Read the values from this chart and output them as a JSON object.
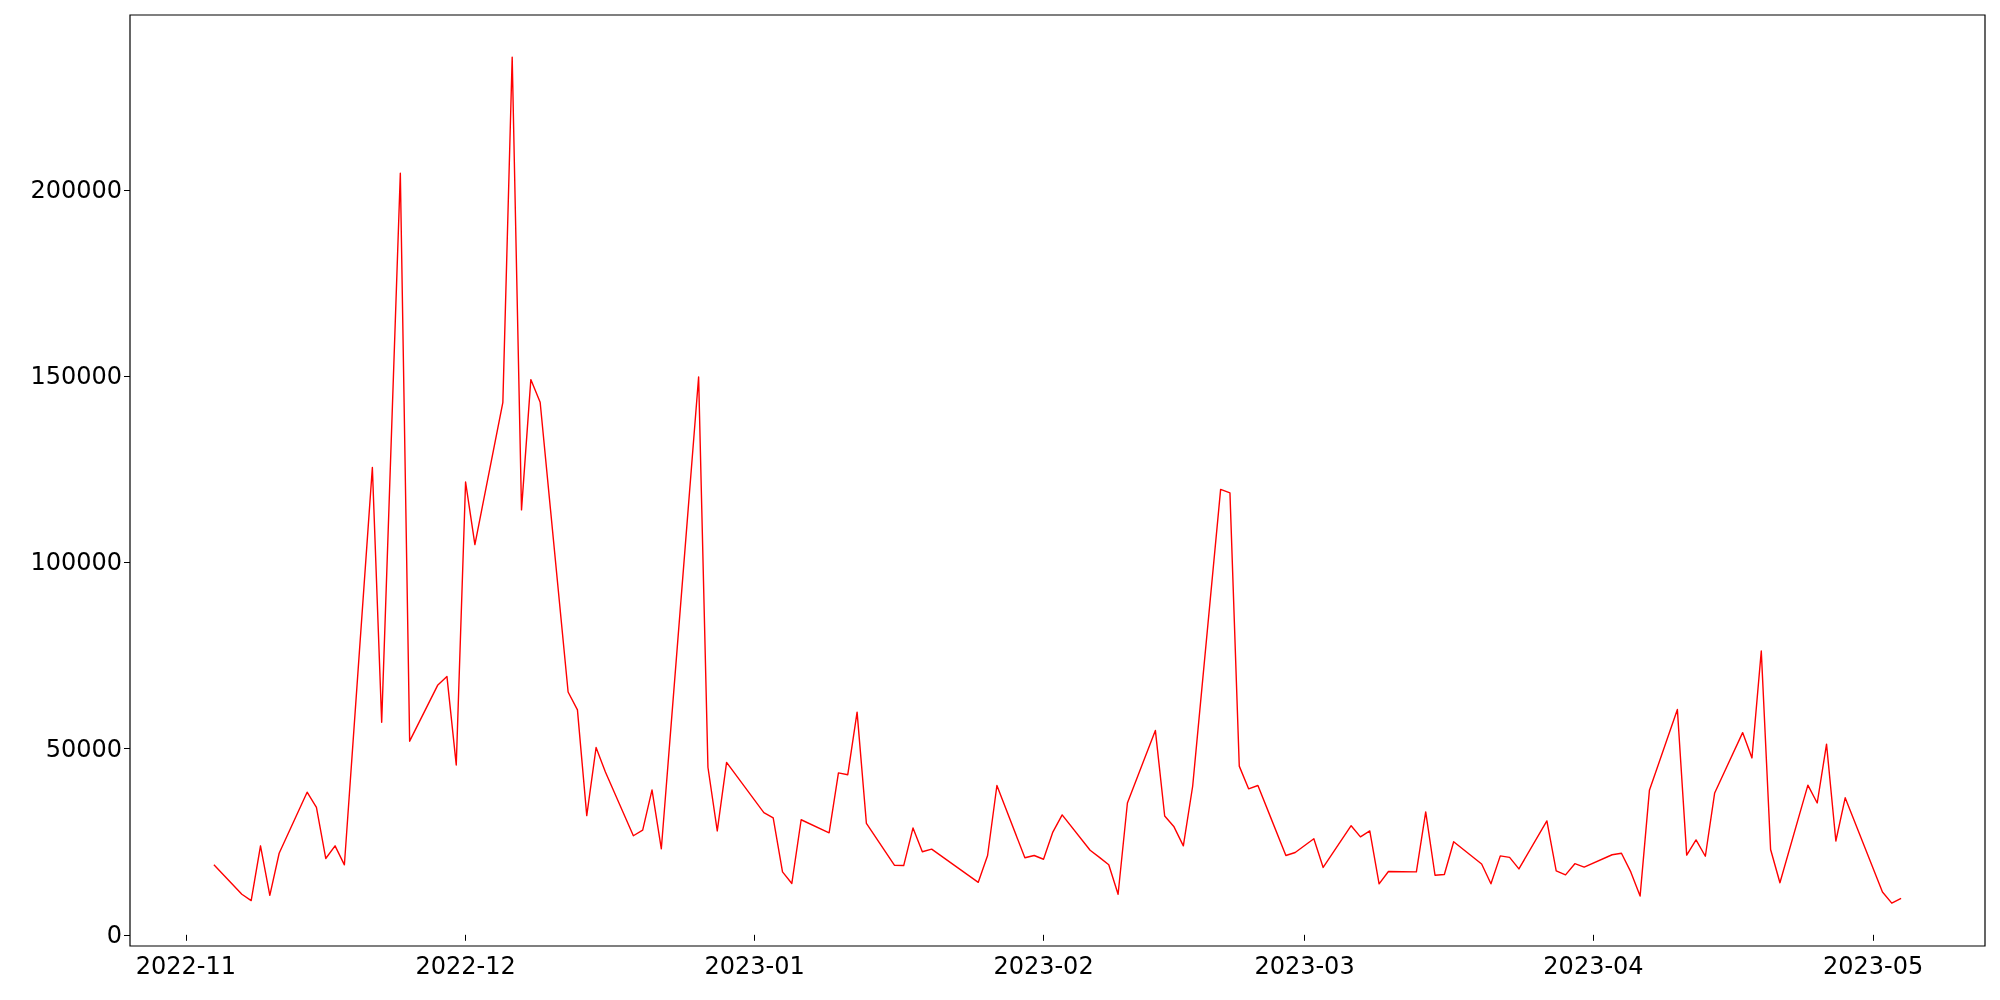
{
  "chart_data": {
    "type": "line",
    "x": [
      "2022-11-04",
      "2022-11-07",
      "2022-11-08",
      "2022-11-09",
      "2022-11-10",
      "2022-11-11",
      "2022-11-14",
      "2022-11-15",
      "2022-11-16",
      "2022-11-17",
      "2022-11-18",
      "2022-11-21",
      "2022-11-22",
      "2022-11-24",
      "2022-11-25",
      "2022-11-28",
      "2022-11-29",
      "2022-11-30",
      "2022-12-01",
      "2022-12-02",
      "2022-12-05",
      "2022-12-06",
      "2022-12-07",
      "2022-12-08",
      "2022-12-09",
      "2022-12-12",
      "2022-12-13",
      "2022-12-14",
      "2022-12-15",
      "2022-12-16",
      "2022-12-19",
      "2022-12-20",
      "2022-12-21",
      "2022-12-22",
      "2022-12-26",
      "2022-12-27",
      "2022-12-28",
      "2022-12-29",
      "2023-01-02",
      "2023-01-03",
      "2023-01-04",
      "2023-01-05",
      "2023-01-06",
      "2023-01-09",
      "2023-01-10",
      "2023-01-11",
      "2023-01-12",
      "2023-01-13",
      "2023-01-16",
      "2023-01-17",
      "2023-01-18",
      "2023-01-19",
      "2023-01-20",
      "2023-01-25",
      "2023-01-26",
      "2023-01-27",
      "2023-01-30",
      "2023-01-31",
      "2023-02-01",
      "2023-02-02",
      "2023-02-03",
      "2023-02-06",
      "2023-02-07",
      "2023-02-08",
      "2023-02-09",
      "2023-02-10",
      "2023-02-13",
      "2023-02-14",
      "2023-02-15",
      "2023-02-16",
      "2023-02-17",
      "2023-02-20",
      "2023-02-21",
      "2023-02-22",
      "2023-02-23",
      "2023-02-24",
      "2023-02-27",
      "2023-02-28",
      "2023-03-02",
      "2023-03-03",
      "2023-03-06",
      "2023-03-07",
      "2023-03-08",
      "2023-03-09",
      "2023-03-10",
      "2023-03-13",
      "2023-03-14",
      "2023-03-15",
      "2023-03-16",
      "2023-03-17",
      "2023-03-20",
      "2023-03-21",
      "2023-03-22",
      "2023-03-23",
      "2023-03-24",
      "2023-03-27",
      "2023-03-28",
      "2023-03-29",
      "2023-03-30",
      "2023-03-31",
      "2023-04-03",
      "2023-04-04",
      "2023-04-05",
      "2023-04-06",
      "2023-04-07",
      "2023-04-10",
      "2023-04-11",
      "2023-04-12",
      "2023-04-13",
      "2023-04-14",
      "2023-04-17",
      "2023-04-18",
      "2023-04-19",
      "2023-04-20",
      "2023-04-21",
      "2023-04-24",
      "2023-04-25",
      "2023-04-26",
      "2023-04-27",
      "2023-04-28",
      "2023-05-02",
      "2023-05-03",
      "2023-05-04"
    ],
    "values": [
      18800,
      10900,
      9200,
      23900,
      10600,
      21900,
      38300,
      34200,
      20500,
      23900,
      18800,
      125500,
      57100,
      204500,
      52000,
      67000,
      69400,
      45600,
      121600,
      104800,
      143000,
      235700,
      114100,
      149100,
      143000,
      65200,
      60400,
      32000,
      50300,
      43700,
      26600,
      28100,
      38900,
      23100,
      149800,
      45000,
      27900,
      46300,
      32800,
      31400,
      16900,
      13800,
      30900,
      27400,
      43500,
      43000,
      59800,
      29900,
      18700,
      18600,
      28700,
      22300,
      23000,
      14100,
      21300,
      40100,
      20700,
      21300,
      20300,
      27600,
      32200,
      22700,
      20800,
      18800,
      10900,
      35400,
      54900,
      31900,
      29000,
      23900,
      39900,
      119600,
      118700,
      45300,
      39200,
      40100,
      21300,
      22100,
      25800,
      18100,
      29300,
      26300,
      27900,
      13700,
      17000,
      16900,
      33000,
      16000,
      16200,
      25000,
      19000,
      13700,
      21200,
      20800,
      17700,
      30600,
      17200,
      16100,
      19100,
      18200,
      21500,
      21900,
      16900,
      10400,
      38800,
      60500,
      21400,
      25500,
      21100,
      38100,
      54300,
      47500,
      76200,
      22900,
      14000,
      40200,
      35400,
      51200,
      25200,
      36800,
      11500,
      8500,
      9800
    ],
    "color": "#ff0000",
    "xlim": [
      "2022-10-26",
      "2023-05-13"
    ],
    "xticks": [
      {
        "value": "2022-11-01",
        "label": "2022-11"
      },
      {
        "value": "2022-12-01",
        "label": "2022-12"
      },
      {
        "value": "2023-01-01",
        "label": "2023-01"
      },
      {
        "value": "2023-02-01",
        "label": "2023-02"
      },
      {
        "value": "2023-03-01",
        "label": "2023-03"
      },
      {
        "value": "2023-04-01",
        "label": "2023-04"
      },
      {
        "value": "2023-05-01",
        "label": "2023-05"
      }
    ],
    "ylim": [
      -3000,
      247000
    ],
    "yticks": [
      0,
      50000,
      100000,
      150000,
      200000
    ]
  }
}
